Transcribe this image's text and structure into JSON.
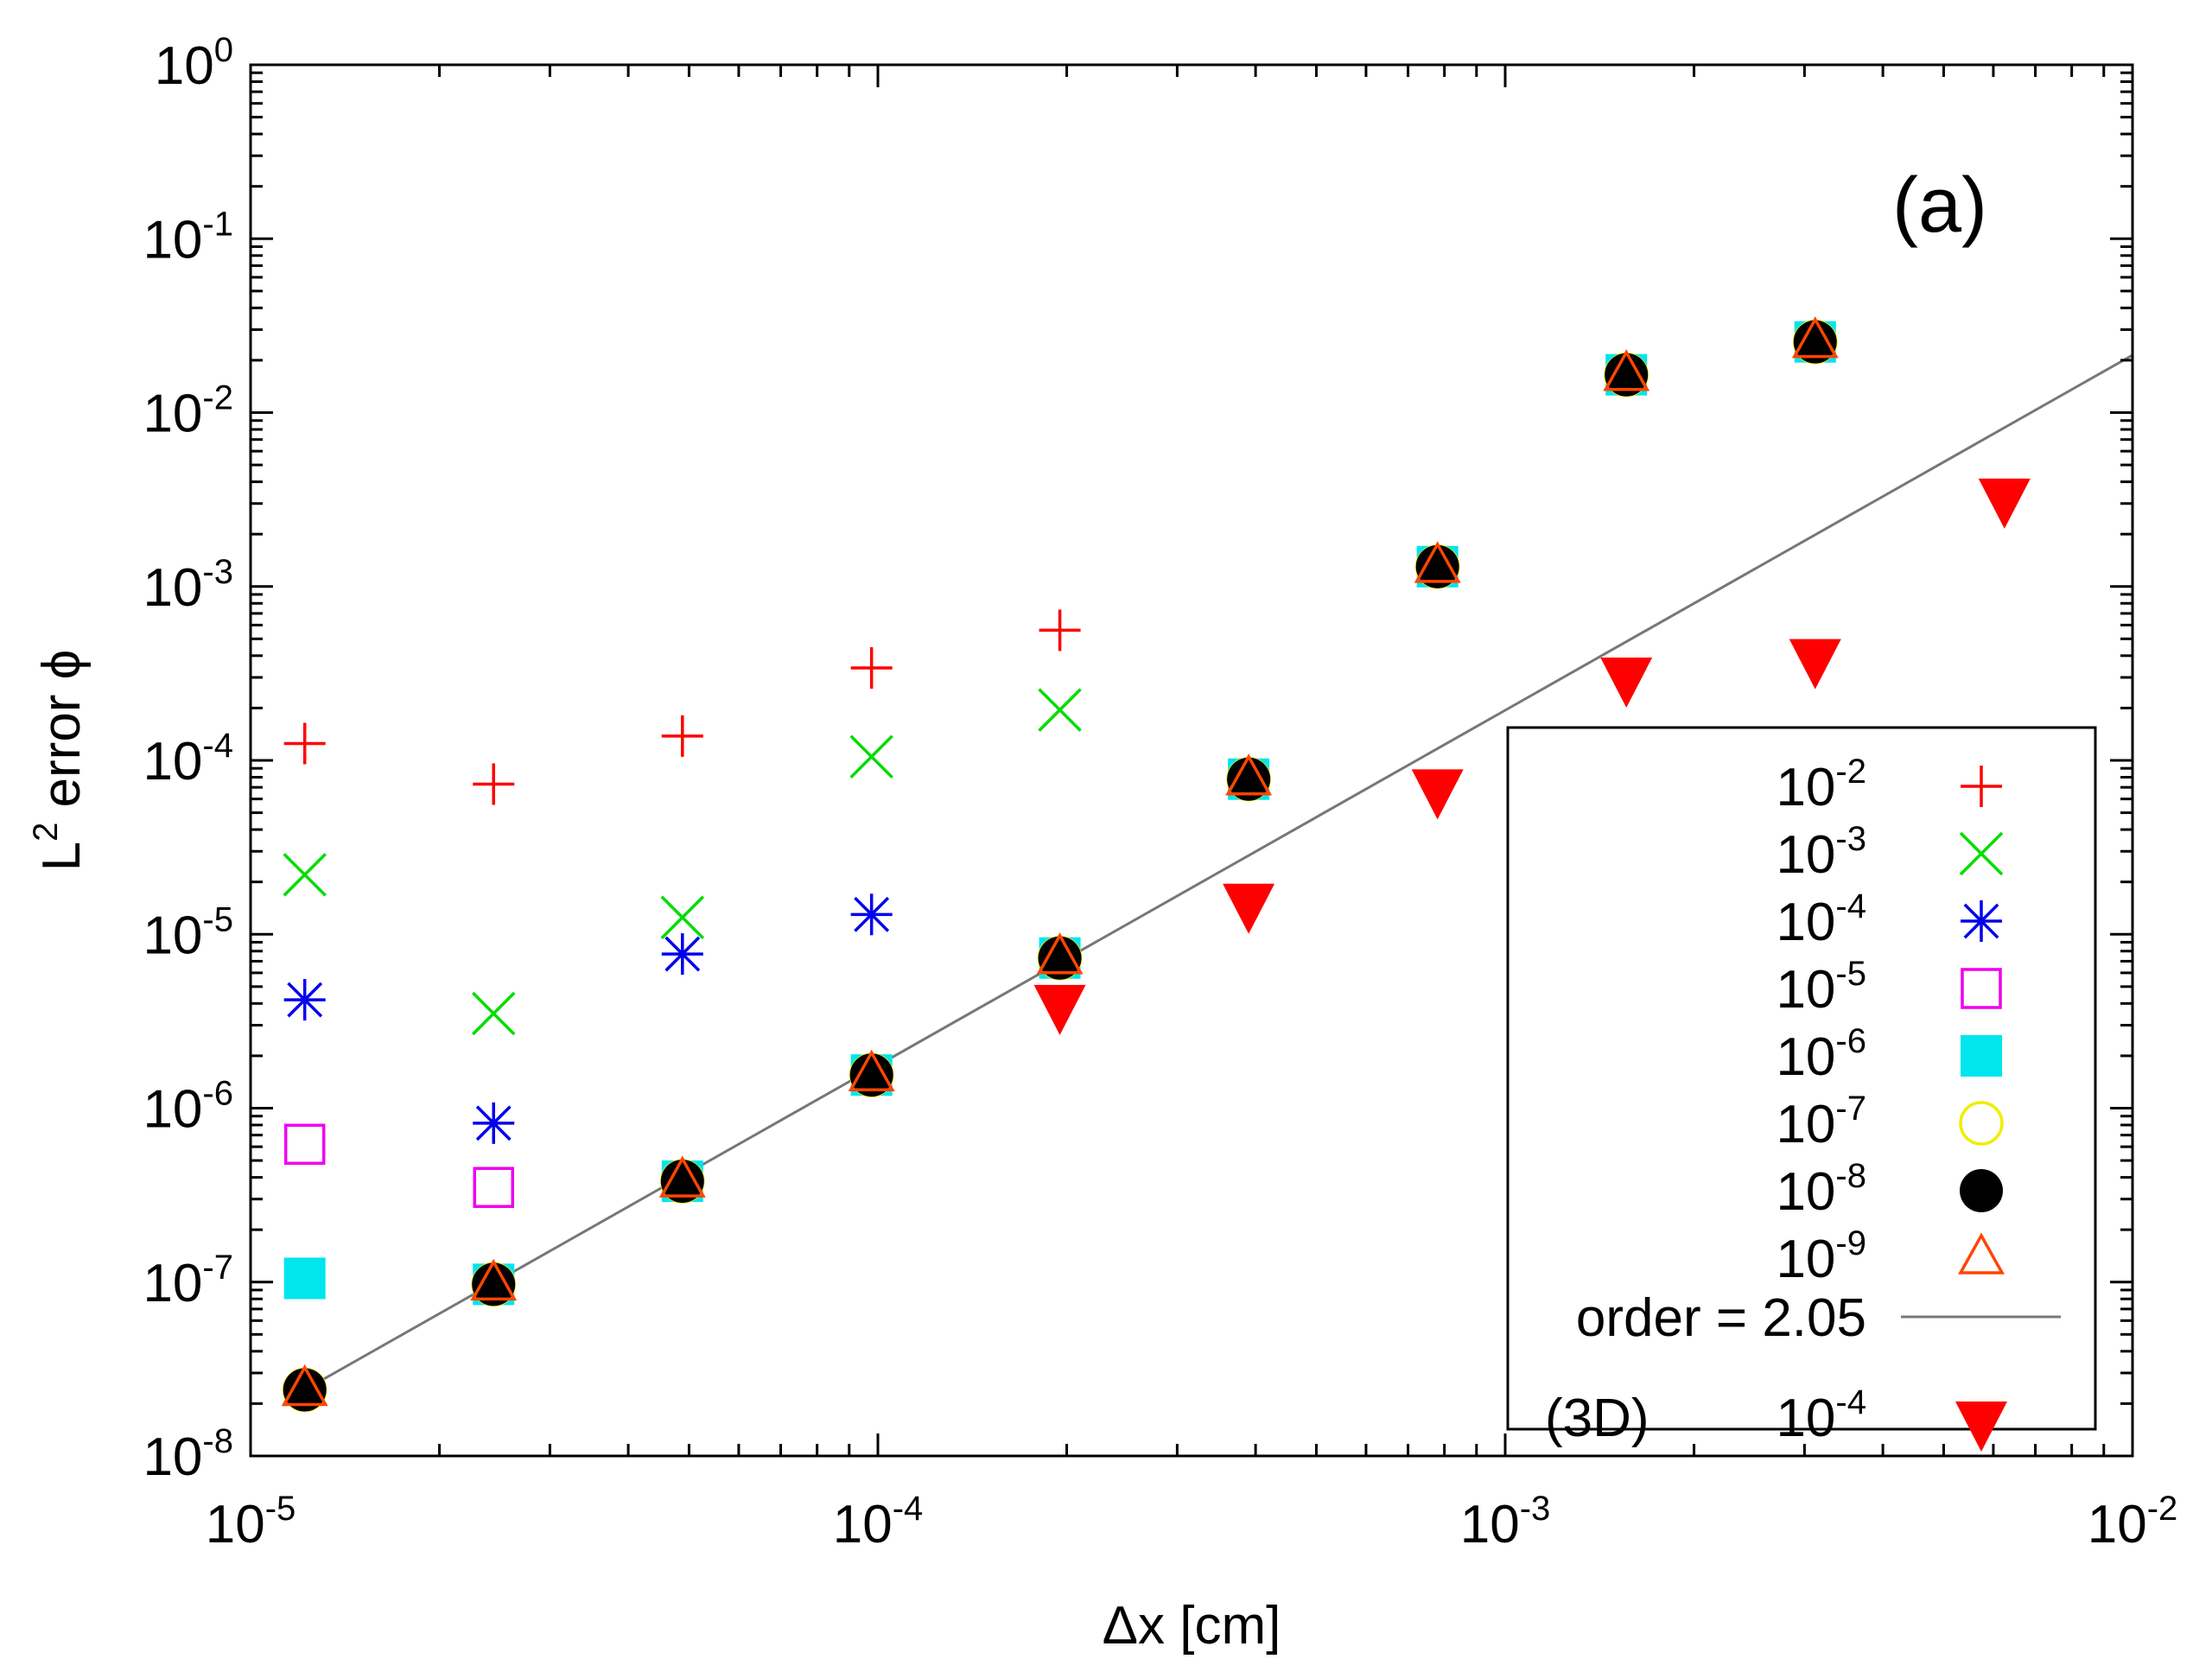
{
  "chart_data": {
    "type": "scatter",
    "panel_label": "(a)",
    "xlabel": "Δx [cm]",
    "ylabel": "L² error ϕ",
    "ylabel_base": "L",
    "ylabel_sup": "2",
    "ylabel_rest": " error ϕ",
    "xscale": "log",
    "yscale": "log",
    "xlim": [
      1e-05,
      0.01
    ],
    "ylim": [
      1e-08,
      1
    ],
    "x_ticks": [
      {
        "value": 1e-05,
        "base": "10",
        "exp": "-5"
      },
      {
        "value": 0.0001,
        "base": "10",
        "exp": "-4"
      },
      {
        "value": 0.001,
        "base": "10",
        "exp": "-3"
      },
      {
        "value": 0.01,
        "base": "10",
        "exp": "-2"
      }
    ],
    "y_ticks": [
      {
        "value": 1e-08,
        "base": "10",
        "exp": "-8"
      },
      {
        "value": 1e-07,
        "base": "10",
        "exp": "-7"
      },
      {
        "value": 1e-06,
        "base": "10",
        "exp": "-6"
      },
      {
        "value": 1e-05,
        "base": "10",
        "exp": "-5"
      },
      {
        "value": 0.0001,
        "base": "10",
        "exp": "-4"
      },
      {
        "value": 0.001,
        "base": "10",
        "exp": "-3"
      },
      {
        "value": 0.01,
        "base": "10",
        "exp": "-2"
      },
      {
        "value": 0.1,
        "base": "10",
        "exp": "-1"
      },
      {
        "value": 1,
        "base": "10",
        "exp": "0"
      }
    ],
    "grid": false,
    "legend_position": "bottom-right",
    "series": [
      {
        "name": "1e-2",
        "label_base": "10",
        "label_exp": "-2",
        "marker": "plus",
        "color": "#ff0000",
        "x": [
          1.22e-05,
          2.44e-05,
          4.88e-05,
          9.77e-05,
          0.000195
        ],
        "y": [
          0.000125,
          7.3e-05,
          0.000138,
          0.00034,
          0.00056
        ]
      },
      {
        "name": "1e-3",
        "label_base": "10",
        "label_exp": "-3",
        "marker": "cross",
        "color": "#00dd00",
        "x": [
          1.22e-05,
          2.44e-05,
          4.88e-05,
          9.77e-05,
          0.000195
        ],
        "y": [
          2.2e-05,
          3.5e-06,
          1.25e-05,
          0.000105,
          0.000195
        ]
      },
      {
        "name": "1e-4",
        "label_base": "10",
        "label_exp": "-4",
        "marker": "star",
        "color": "#0000ee",
        "x": [
          1.22e-05,
          2.44e-05,
          4.88e-05,
          9.77e-05
        ],
        "y": [
          4.2e-06,
          8.2e-07,
          7.7e-06,
          1.3e-05
        ]
      },
      {
        "name": "1e-5",
        "label_base": "10",
        "label_exp": "-5",
        "marker": "open-square",
        "color": "#ee00ee",
        "x": [
          1.22e-05,
          2.44e-05
        ],
        "y": [
          6.2e-07,
          3.5e-07
        ]
      },
      {
        "name": "1e-6",
        "label_base": "10",
        "label_exp": "-6",
        "marker": "filled-square",
        "color": "#00e5ee",
        "x": [
          1.22e-05,
          2.44e-05,
          4.88e-05,
          9.77e-05,
          0.000195,
          0.00039,
          0.00078,
          0.00156,
          0.00312
        ],
        "y": [
          1.05e-07,
          9.7e-08,
          3.8e-07,
          1.55e-06,
          7.3e-06,
          7.8e-05,
          0.0013,
          0.0165,
          0.0255
        ]
      },
      {
        "name": "1e-7",
        "label_base": "10",
        "label_exp": "-7",
        "marker": "open-circle",
        "color": "#eeee00",
        "x": [
          1.22e-05,
          2.44e-05,
          4.88e-05,
          9.77e-05,
          0.000195,
          0.00039,
          0.00078,
          0.00156,
          0.00312
        ],
        "y": [
          2.4e-08,
          9.7e-08,
          3.8e-07,
          1.55e-06,
          7.3e-06,
          7.8e-05,
          0.0013,
          0.0165,
          0.0255
        ]
      },
      {
        "name": "1e-8",
        "label_base": "10",
        "label_exp": "-8",
        "marker": "filled-circle",
        "color": "#000000",
        "x": [
          1.22e-05,
          2.44e-05,
          4.88e-05,
          9.77e-05,
          0.000195,
          0.00039,
          0.00078,
          0.00156,
          0.00312
        ],
        "y": [
          2.4e-08,
          9.7e-08,
          3.8e-07,
          1.55e-06,
          7.3e-06,
          7.8e-05,
          0.0013,
          0.0165,
          0.0255
        ]
      },
      {
        "name": "1e-9",
        "label_base": "10",
        "label_exp": "-9",
        "marker": "open-triangle",
        "color": "#ff4500",
        "x": [
          1.22e-05,
          2.44e-05,
          4.88e-05,
          9.77e-05,
          0.000195,
          0.00039,
          0.00078,
          0.00156,
          0.00312
        ],
        "y": [
          2.4e-08,
          9.7e-08,
          3.8e-07,
          1.55e-06,
          7.3e-06,
          7.8e-05,
          0.0013,
          0.0165,
          0.0255
        ]
      },
      {
        "name": "3D 1e-4",
        "label_prefix": "(3D)",
        "label_base": "10",
        "label_exp": "-4",
        "marker": "filled-triangle-down",
        "color": "#ff0000",
        "x": [
          0.000195,
          0.00039,
          0.00078,
          0.00156,
          0.00312,
          0.00625
        ],
        "y": [
          3.8e-06,
          1.45e-05,
          6.6e-05,
          0.00029,
          0.00037,
          0.0031
        ]
      }
    ],
    "fit_line": {
      "label": "order =",
      "value_text": "2.05",
      "order": 2.05,
      "color": "#777777",
      "x": [
        1.22e-05,
        0.01
      ],
      "y": [
        2.4e-08,
        0.0214
      ]
    }
  }
}
